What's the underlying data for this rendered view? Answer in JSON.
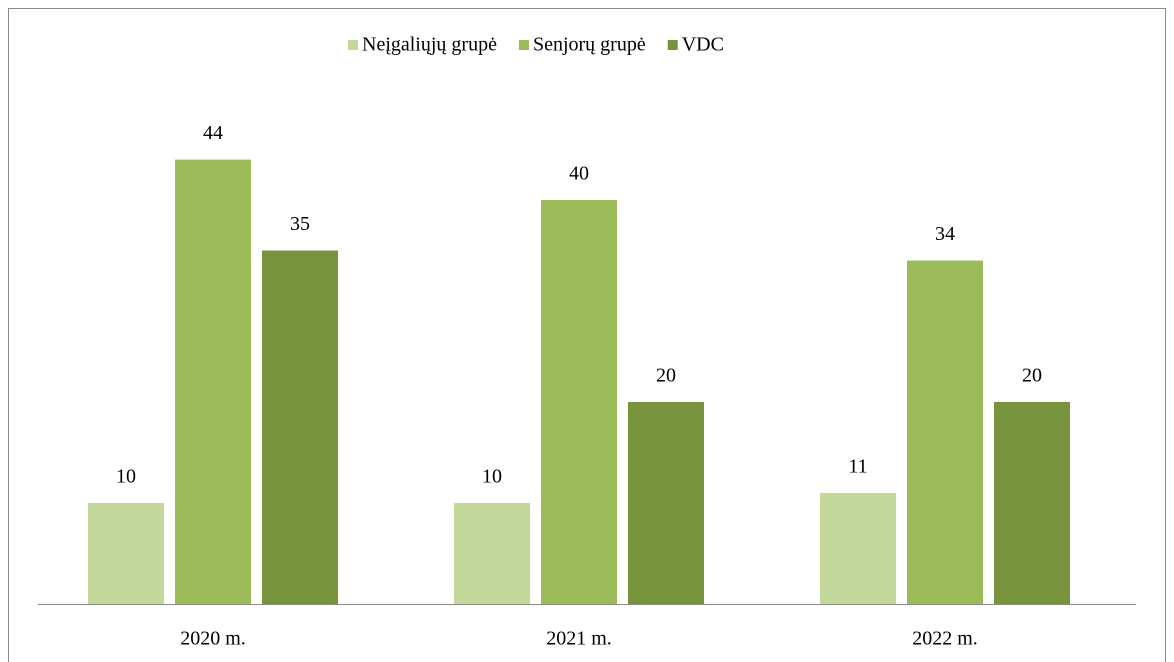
{
  "chart_data": {
    "type": "bar",
    "categories": [
      "2020 m.",
      "2021 m.",
      "2022 m."
    ],
    "series": [
      {
        "name": "Neįgaliųjų grupė",
        "color": "#c4d79b",
        "values": [
          10,
          10,
          11
        ]
      },
      {
        "name": "Senjorų grupė",
        "color": "#9bbb59",
        "values": [
          44,
          40,
          34
        ]
      },
      {
        "name": "VDC",
        "color": "#77933c",
        "values": [
          35,
          20,
          20
        ]
      }
    ],
    "legend": "top"
  }
}
